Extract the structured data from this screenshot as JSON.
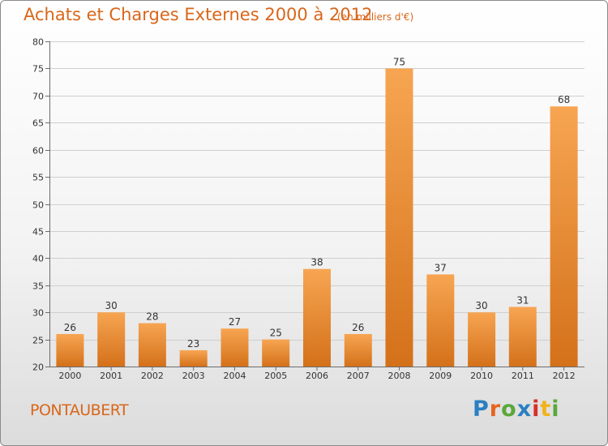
{
  "header": {
    "title": "Achats et Charges Externes 2000 à 2012",
    "unit": "(en milliers d'€)"
  },
  "footer": {
    "city": "PONTAUBERT",
    "logo_text": "Proxiti",
    "logo_colors": [
      "#2a7fc1",
      "#e8641e",
      "#5aa83a",
      "#2a7fc1",
      "#d6302a",
      "#f2b21b",
      "#5aa83a"
    ]
  },
  "colors": {
    "bar_light": "#f7a552",
    "bar_dark": "#d4711a",
    "axis": "#6c6c6c",
    "grid": "#cfcfcf",
    "text": "#333333",
    "accent": "#d9661a"
  },
  "chart_data": {
    "type": "bar",
    "title": "Achats et Charges Externes 2000 à 2012",
    "subtitle": "(en milliers d'€)",
    "categories": [
      "2000",
      "2001",
      "2002",
      "2003",
      "2004",
      "2005",
      "2006",
      "2007",
      "2008",
      "2009",
      "2010",
      "2011",
      "2012"
    ],
    "values": [
      26,
      30,
      28,
      23,
      27,
      25,
      38,
      26,
      75,
      37,
      30,
      31,
      68
    ],
    "ylim": [
      20,
      80
    ],
    "yticks": [
      20,
      25,
      30,
      35,
      40,
      45,
      50,
      55,
      60,
      65,
      70,
      75,
      80
    ],
    "grid": true,
    "data_labels": true
  }
}
